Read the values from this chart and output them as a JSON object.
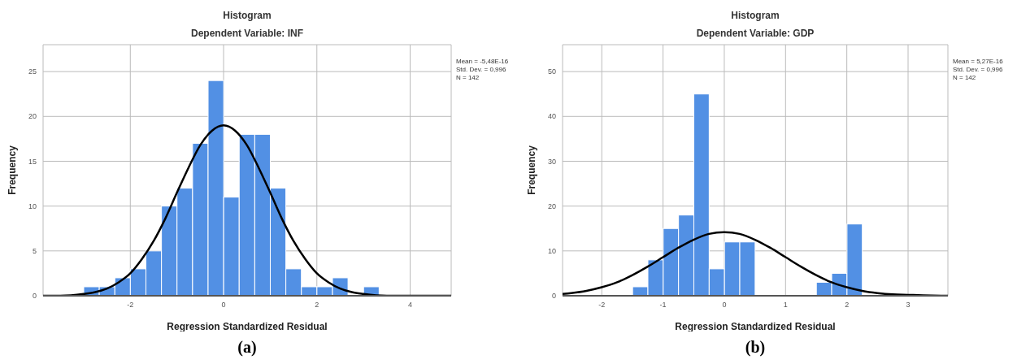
{
  "chart_data": [
    {
      "type": "histogram",
      "title": "Histogram",
      "subtitle": "Dependent Variable: INF",
      "xlabel": "Regression Standardized Residual",
      "ylabel": "Frequency",
      "bins": [
        -3,
        -2.667,
        -2.333,
        -2,
        -1.667,
        -1.333,
        -1,
        -0.667,
        -0.333,
        0,
        0.333,
        0.667,
        1,
        1.333,
        1.667,
        2,
        2.333,
        2.667,
        3,
        3.333
      ],
      "values": [
        1,
        1,
        2,
        3,
        5,
        10,
        12,
        17,
        24,
        11,
        18,
        18,
        12,
        3,
        1,
        1,
        2,
        0,
        1
      ],
      "color": "#5290e4",
      "series": [
        {
          "type": "line",
          "color": "#000000",
          "x": [
            -3.87,
            -3.5,
            -3,
            -2.75,
            -2.5,
            -2.25,
            -2,
            -1.75,
            -1.5,
            -1.25,
            -1,
            -0.75,
            -0.5,
            -0.25,
            0,
            0.25,
            0.5,
            0.75,
            1,
            1.25,
            1.5,
            1.75,
            2,
            2.25,
            2.5,
            2.75,
            3,
            3.5,
            4,
            4.88
          ],
          "values": [
            0,
            0,
            0.2,
            0.4,
            0.8,
            1.5,
            2.5,
            4.1,
            6.1,
            8.6,
            11.5,
            14.3,
            16.8,
            18.4,
            19,
            18.4,
            16.8,
            14.3,
            11.5,
            8.6,
            6.1,
            4.1,
            2.5,
            1.5,
            0.8,
            0.4,
            0.2,
            0,
            0,
            0
          ]
        }
      ],
      "xlim": [
        -3.87,
        4.88
      ],
      "xticks": [
        -2,
        0,
        2,
        4
      ],
      "ylim": [
        0,
        28
      ],
      "yticks": [
        0,
        5,
        10,
        15,
        20,
        25
      ],
      "grid": true,
      "annotations": [
        "Mean = -5,48E-16\nStd. Dev. = 0,996\nN = 142",
        "(a)"
      ]
    },
    {
      "type": "histogram",
      "title": "Histogram",
      "subtitle": "Dependent Variable: GDP",
      "xlabel": "Regression Standardized Residual",
      "ylabel": "Frequency",
      "bins": [
        -1.5,
        -1.25,
        -1,
        -0.75,
        -0.5,
        -0.25,
        0,
        0.25,
        0.5,
        0.75,
        1,
        1.25,
        1.5,
        1.75,
        2,
        2.25
      ],
      "values": [
        2,
        8,
        15,
        18,
        45,
        6,
        12,
        12,
        0,
        0,
        0,
        0,
        3,
        5,
        16
      ],
      "color": "#5290e4",
      "series": [
        {
          "type": "line",
          "color": "#000000",
          "x": [
            -2.64,
            -2.5,
            -2.25,
            -2,
            -1.75,
            -1.5,
            -1.25,
            -1,
            -0.75,
            -0.5,
            -0.25,
            0,
            0.25,
            0.5,
            0.75,
            1,
            1.25,
            1.5,
            1.75,
            2,
            2.25,
            2.5,
            2.75,
            3,
            3.25,
            3.65
          ],
          "values": [
            0.4,
            0.6,
            1.1,
            1.9,
            3,
            4.6,
            6.5,
            8.6,
            10.7,
            12.5,
            13.8,
            14.2,
            13.8,
            12.5,
            10.7,
            8.6,
            6.5,
            4.6,
            3,
            1.9,
            1.1,
            0.6,
            0.3,
            0.2,
            0.1,
            0
          ]
        }
      ],
      "xlim": [
        -2.64,
        3.65
      ],
      "xticks": [
        -2,
        -1,
        0,
        1,
        2,
        3
      ],
      "ylim": [
        0,
        56
      ],
      "yticks": [
        0,
        10,
        20,
        30,
        40,
        50
      ],
      "grid": true,
      "annotations": [
        "Mean = 5,27E-16\nStd. Dev. = 0,996\nN = 142",
        "(b)"
      ]
    }
  ]
}
